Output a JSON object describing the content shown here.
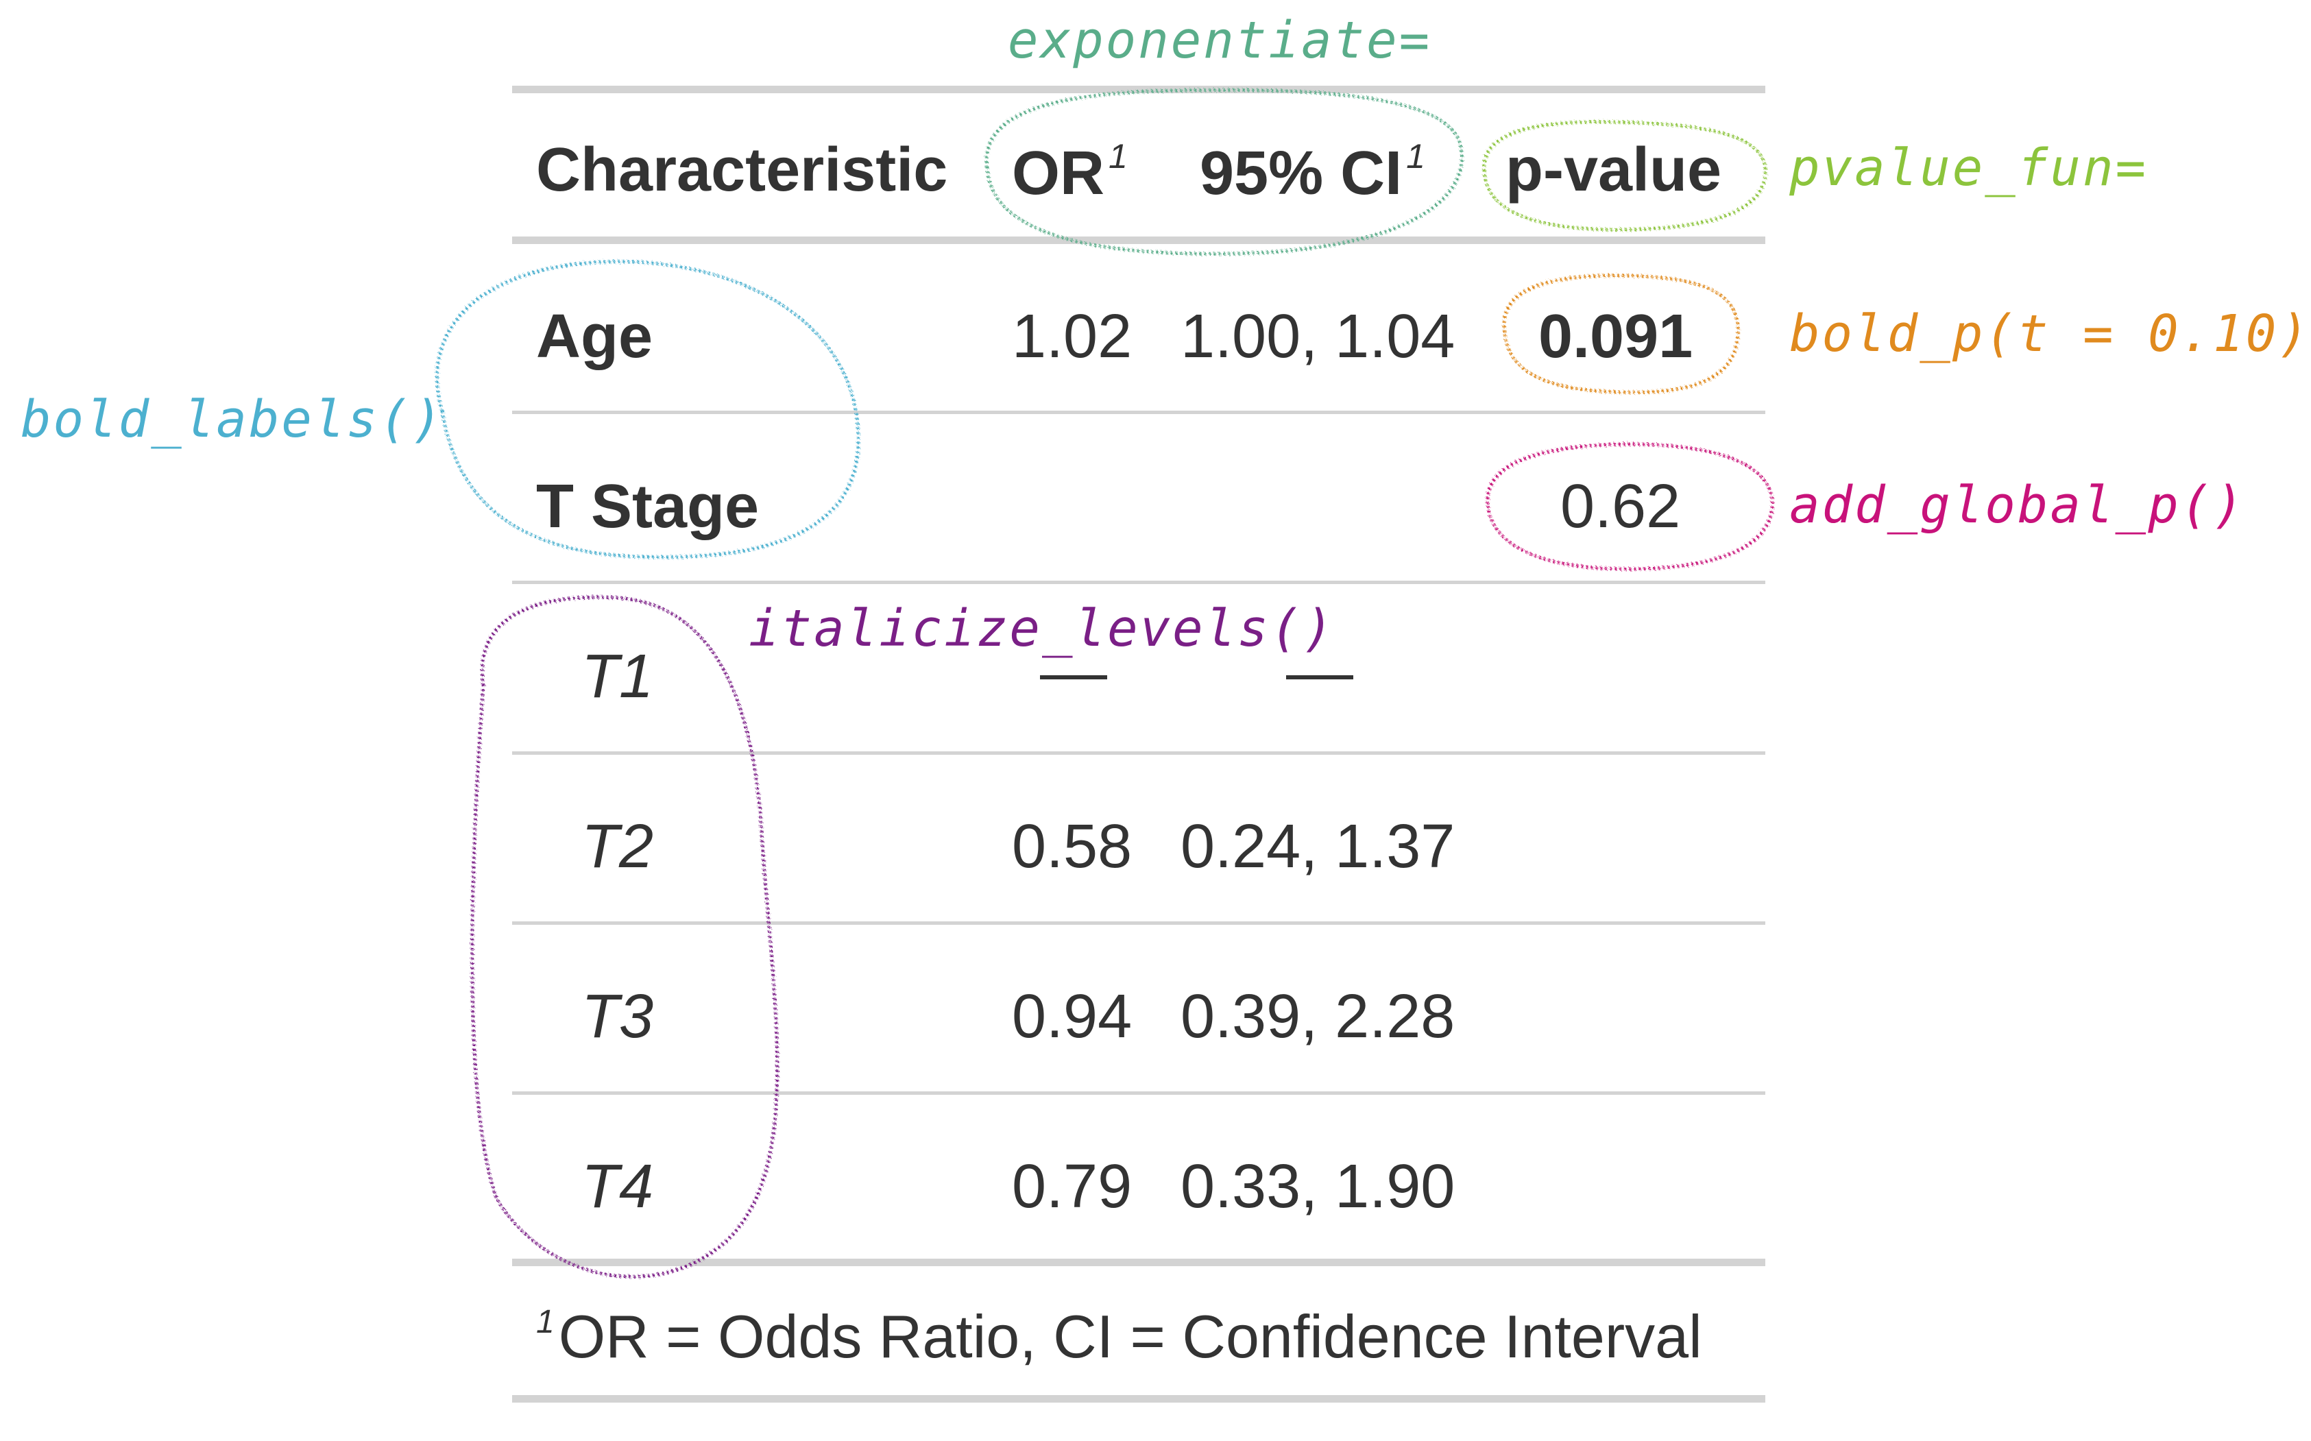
{
  "table": {
    "header": {
      "characteristic": "Characteristic",
      "or": "OR",
      "ci": "95% CI",
      "pvalue": "p-value",
      "or_footnote_mark": "1",
      "ci_footnote_mark": "1"
    },
    "rows": [
      {
        "label": "Age",
        "style": "bold",
        "or": "1.02",
        "ci": "1.00, 1.04",
        "p": "0.091",
        "p_bold": true
      },
      {
        "label": "T Stage",
        "style": "bold",
        "or": "",
        "ci": "",
        "p": "0.62",
        "p_bold": false
      },
      {
        "label": "T1",
        "style": "italic",
        "or": "—",
        "ci": "—",
        "p": ""
      },
      {
        "label": "T2",
        "style": "italic",
        "or": "0.58",
        "ci": "0.24, 1.37",
        "p": ""
      },
      {
        "label": "T3",
        "style": "italic",
        "or": "0.94",
        "ci": "0.39, 2.28",
        "p": ""
      },
      {
        "label": "T4",
        "style": "italic",
        "or": "0.79",
        "ci": "0.33, 1.90",
        "p": ""
      }
    ],
    "footnote": {
      "mark": "1",
      "text": "OR = Odds Ratio, CI = Confidence Interval"
    }
  },
  "annotations": {
    "exponentiate": {
      "text": "exponentiate=",
      "color": "#5aad8a"
    },
    "pvalue_fun": {
      "text": "pvalue_fun=",
      "color": "#8cc43c"
    },
    "bold_p": {
      "text": "bold_p(t = 0.10)",
      "color": "#e08a1e"
    },
    "add_global_p": {
      "text": "add_global_p()",
      "color": "#c8127a"
    },
    "bold_labels": {
      "text": "bold_labels()",
      "color": "#4cb0cf"
    },
    "italicize_levels": {
      "text": "italicize_levels()",
      "color": "#7a1f86"
    }
  },
  "colors": {
    "text": "#333333",
    "rule": "#d3d3d3"
  }
}
